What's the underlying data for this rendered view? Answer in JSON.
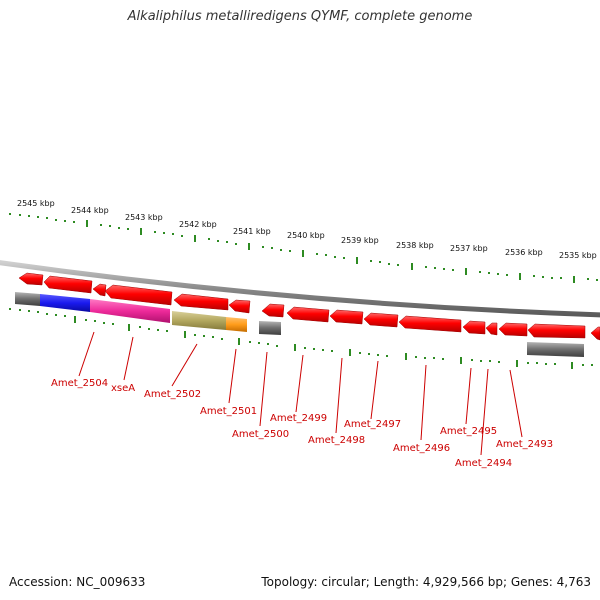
{
  "title": "Alkaliphilus metalliredigens QYMF, complete genome",
  "accession": "Accession: NC_009633",
  "topology": "Topology: circular; Length: 4,929,566 bp; Genes: 4,763",
  "colors": {
    "background": "#ffffff",
    "backbone": "#888888",
    "tick": "#2e8b22",
    "gene": "#ff0000",
    "gene_label": "#cc0000",
    "grey_feature": "#6d6d6d",
    "blue_feature": "#1a1aee",
    "pink_feature": "#ee2a9a",
    "olive_feature": "#b3a85f",
    "orange_feature": "#ff9c1a"
  },
  "kbp_labels": [
    "2545 kbp",
    "2544 kbp",
    "2543 kbp",
    "2542 kbp",
    "2541 kbp",
    "2540 kbp",
    "2539 kbp",
    "2538 kbp",
    "2537 kbp",
    "2536 kbp",
    "2535 kbp"
  ],
  "gene_labels": [
    "Amet_2504",
    "xseA",
    "Amet_2502",
    "Amet_2501",
    "Amet_2500",
    "Amet_2499",
    "Amet_2498",
    "Amet_2497",
    "Amet_2496",
    "Amet_2495",
    "Amet_2494",
    "Amet_2493"
  ]
}
